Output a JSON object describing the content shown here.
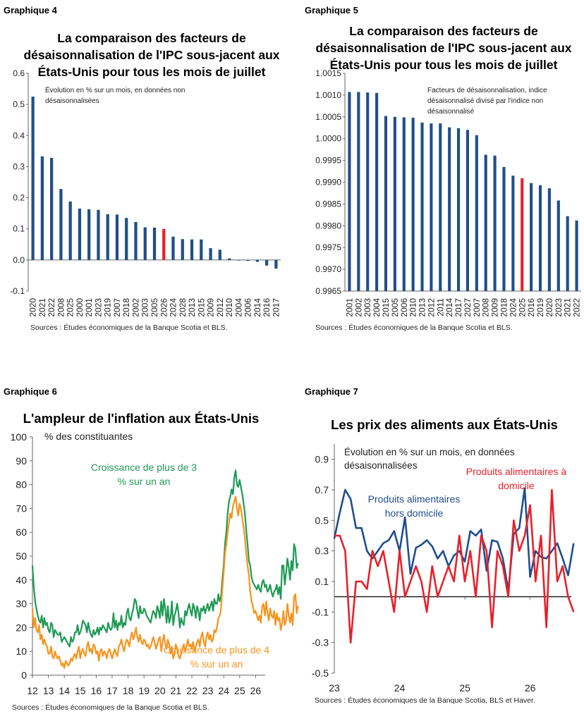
{
  "panels": {
    "g4": {
      "label": "Graphique 4",
      "title": "La comparaison des facteurs de désaisonnalisation de l'IPC sous-jacent aux États-Unis pour tous les mois de juillet",
      "note": "Évolution en % sur un mois, en données non désaisonnalisées",
      "source": "Sources : Études économiques de la Banque Scotia et BLS."
    },
    "g5": {
      "label": "Graphique 5",
      "title": "La comparaison des facteurs de désaisonnalisation de l'IPC sous-jacent aux États-Unis pour tous les mois de juillet",
      "note": "Facteurs de désaisonnalisation, indice désaisonnalisé divisé par l'indice non désaisonnalisé",
      "source": "Sources : Études économiques de la Banque Scotia et BLS."
    },
    "g6": {
      "label": "Graphique 6",
      "title": "L'ampleur de l'inflation aux États-Unis",
      "note": "% des constituantes",
      "source": "Sources : Études économiques de la Banque Scotia et BLS."
    },
    "g7": {
      "label": "Graphique 7",
      "title": "Les prix des aliments aux États-Unis",
      "note": "Évolution en % sur un mois, en données désaisonnalisées",
      "source": "Sources : Études économiques de la Banque Scotia, BLS et Haver."
    }
  },
  "colors": {
    "navy": "#1f4e8c",
    "red": "#e8202a",
    "green": "#1f9a55",
    "orange": "#f7941d",
    "axis": "#666666"
  },
  "chart_data": [
    {
      "type": "bar",
      "categories": [
        "2020",
        "2021",
        "2022",
        "2008",
        "2025",
        "2000",
        "2001",
        "2023",
        "2019",
        "2007",
        "2018",
        "2002",
        "2003",
        "2005",
        "2026",
        "2024",
        "2028",
        "2013",
        "2015",
        "2009",
        "2012",
        "2010",
        "2004",
        "2006",
        "2014",
        "2016",
        "2017"
      ],
      "values": [
        0.525,
        0.333,
        0.328,
        0.228,
        0.188,
        0.165,
        0.163,
        0.161,
        0.147,
        0.146,
        0.135,
        0.122,
        0.105,
        0.104,
        0.1,
        0.075,
        0.067,
        0.066,
        0.066,
        0.038,
        0.033,
        0.005,
        0.0,
        -0.003,
        -0.006,
        -0.018,
        -0.028
      ],
      "highlight": "2026",
      "ylim": [
        -0.1,
        0.6
      ],
      "yticks": [
        "0.6",
        "0.5",
        "0.4",
        "0.3",
        "0.2",
        "0.1",
        "0.0",
        "-0.1"
      ],
      "ytick_values": [
        0.6,
        0.5,
        0.4,
        0.3,
        0.2,
        0.1,
        0.0,
        -0.1
      ]
    },
    {
      "type": "bar",
      "categories": [
        "2001",
        "2002",
        "2003",
        "2004",
        "2015",
        "2005",
        "2006",
        "2010",
        "2013",
        "2012",
        "2011",
        "2014",
        "2017",
        "2027",
        "2007",
        "2008",
        "2009",
        "2018",
        "2024",
        "2025",
        "2016",
        "2019",
        "2020",
        "2023",
        "2021",
        "2022"
      ],
      "values": [
        1.00107,
        1.00107,
        1.00106,
        1.00105,
        1.00052,
        1.0005,
        1.00049,
        1.00048,
        1.00037,
        1.00035,
        1.00035,
        1.00026,
        1.00024,
        1.0002,
        1.00008,
        0.99963,
        0.99961,
        0.99935,
        0.99915,
        0.99909,
        0.99898,
        0.99893,
        0.99886,
        0.99858,
        0.99822,
        0.99812
      ],
      "highlight": "2025",
      "ylim": [
        0.9965,
        1.0015
      ],
      "yticks": [
        "1.0015",
        "1.0010",
        "1.0005",
        "1.0000",
        "0.9995",
        "0.9990",
        "0.9985",
        "0.9980",
        "0.9975",
        "0.9970",
        "0.9965"
      ],
      "ytick_values": [
        1.0015,
        1.001,
        1.0005,
        1.0,
        0.9995,
        0.999,
        0.9985,
        0.998,
        0.9975,
        0.997,
        0.9965
      ]
    },
    {
      "type": "line",
      "x_start": 2012.0,
      "x_step": 0.0833,
      "xlim": [
        2012.0,
        2026.6
      ],
      "ylim": [
        0,
        100
      ],
      "xticks": [
        "12",
        "13",
        "14",
        "15",
        "16",
        "17",
        "18",
        "19",
        "20",
        "21",
        "22",
        "23",
        "24",
        "25",
        "26"
      ],
      "xtick_values": [
        2012,
        2013,
        2014,
        2015,
        2016,
        2017,
        2018,
        2019,
        2020,
        2021,
        2022,
        2023,
        2024,
        2025,
        2026
      ],
      "yticks": [
        "100",
        "90",
        "80",
        "70",
        "60",
        "50",
        "40",
        "30",
        "20",
        "10",
        "0"
      ],
      "ytick_values": [
        100,
        90,
        80,
        70,
        60,
        50,
        40,
        30,
        20,
        10,
        0
      ],
      "series": [
        {
          "name": "Croissance de plus de 3 % sur un an",
          "color_key": "green",
          "values": [
            46,
            37,
            31,
            28,
            25,
            23,
            22,
            25,
            20,
            24,
            21,
            22,
            19,
            18,
            22,
            21,
            16,
            19,
            18,
            17,
            17,
            18,
            14,
            15,
            16,
            15,
            14,
            13,
            12,
            16,
            14,
            15,
            18,
            18,
            21,
            17,
            18,
            20,
            23,
            22,
            21,
            18,
            22,
            19,
            17,
            16,
            19,
            17,
            18,
            20,
            17,
            20,
            19,
            21,
            20,
            19,
            18,
            22,
            20,
            19,
            20,
            26,
            20,
            23,
            19,
            22,
            21,
            25,
            20,
            22,
            21,
            26,
            28,
            24,
            23,
            26,
            28,
            32,
            31,
            27,
            24,
            29,
            26,
            26,
            28,
            27,
            25,
            24,
            23,
            22,
            25,
            27,
            26,
            24,
            29,
            27,
            24,
            31,
            25,
            32,
            28,
            22,
            29,
            22,
            24,
            31,
            21,
            25,
            27,
            30,
            26,
            20,
            24,
            22,
            21,
            27,
            25,
            28,
            30,
            27,
            25,
            30,
            28,
            24,
            29,
            27,
            23,
            28,
            27,
            29,
            26,
            28,
            30,
            27,
            29,
            31,
            27,
            32,
            30,
            30,
            34,
            31,
            33,
            40,
            46,
            55,
            60,
            68,
            73,
            75,
            78,
            76,
            83,
            86,
            80,
            79,
            82,
            79,
            76,
            72,
            68,
            61,
            55,
            48,
            46,
            41,
            39,
            38,
            37,
            36,
            38,
            36,
            35,
            39,
            40,
            37,
            38,
            35,
            36,
            38,
            35,
            33,
            35,
            36,
            38,
            34,
            37,
            32,
            46,
            46,
            38,
            43,
            49,
            45,
            40,
            48,
            44,
            55,
            53,
            45,
            47
          ]
        },
        {
          "name": "Croissance de plus de 4 % sur un an",
          "color_key": "orange",
          "values": [
            28,
            20,
            24,
            19,
            18,
            21,
            15,
            17,
            13,
            15,
            13,
            12,
            9,
            9,
            12,
            8,
            7,
            10,
            8,
            7,
            8,
            6,
            4,
            5,
            3,
            6,
            5,
            4,
            5,
            7,
            6,
            8,
            9,
            7,
            10,
            12,
            7,
            10,
            11,
            9,
            8,
            12,
            14,
            10,
            11,
            9,
            13,
            12,
            9,
            10,
            6,
            10,
            11,
            8,
            10,
            9,
            7,
            10,
            11,
            9,
            7,
            9,
            11,
            9,
            8,
            12,
            13,
            15,
            12,
            10,
            13,
            15,
            14,
            12,
            16,
            18,
            15,
            17,
            20,
            16,
            14,
            17,
            14,
            13,
            15,
            14,
            12,
            13,
            11,
            12,
            14,
            16,
            14,
            11,
            13,
            15,
            16,
            10,
            14,
            17,
            13,
            11,
            15,
            13,
            9,
            12,
            7,
            9,
            13,
            11,
            8,
            7,
            9,
            11,
            13,
            10,
            12,
            15,
            12,
            13,
            11,
            14,
            10,
            12,
            14,
            15,
            12,
            16,
            18,
            14,
            12,
            16,
            18,
            15,
            17,
            14,
            15,
            19,
            18,
            20,
            24,
            25,
            28,
            36,
            43,
            51,
            55,
            60,
            64,
            68,
            66,
            71,
            73,
            75,
            70,
            67,
            72,
            70,
            66,
            62,
            58,
            51,
            46,
            42,
            35,
            31,
            29,
            26,
            27,
            25,
            23,
            25,
            22,
            29,
            30,
            25,
            31,
            26,
            23,
            28,
            25,
            24,
            27,
            21,
            26,
            23,
            24,
            19,
            22,
            27,
            21,
            23,
            30,
            25,
            22,
            26,
            21,
            33,
            34,
            26,
            29
          ]
        }
      ]
    },
    {
      "type": "line",
      "x_start": 2023.0,
      "x_step": 0.0833,
      "xlim": [
        2023.0,
        2026.63
      ],
      "ylim": [
        -0.5,
        1.0
      ],
      "xticks": [
        "23",
        "24",
        "25",
        "26"
      ],
      "xtick_values": [
        2023,
        2024,
        2025,
        2026
      ],
      "yticks": [
        "0.9",
        "0.7",
        "0.5",
        "0.3",
        "0.1",
        "-0.1",
        "-0.3",
        "-0.5"
      ],
      "ytick_values": [
        0.9,
        0.7,
        0.5,
        0.3,
        0.1,
        -0.1,
        -0.3,
        -0.5
      ],
      "series": [
        {
          "name": "Produits alimentaires hors domicile",
          "color_key": "navy",
          "values": [
            0.38,
            0.55,
            0.7,
            0.64,
            0.45,
            0.45,
            0.3,
            0.25,
            0.3,
            0.35,
            0.37,
            0.43,
            0.3,
            0.52,
            0.15,
            0.32,
            0.34,
            0.37,
            0.33,
            0.25,
            0.3,
            0.2,
            0.27,
            0.3,
            0.23,
            0.43,
            0.4,
            0.44,
            0.17,
            0.37,
            0.36,
            0.25,
            0.04,
            0.41,
            0.45,
            0.71,
            0.13,
            0.3,
            0.26,
            0.25,
            0.3,
            0.35,
            0.25,
            0.14,
            0.35
          ]
        },
        {
          "name": "Produits alimentaires à domicile",
          "color_key": "red",
          "values": [
            0.4,
            0.4,
            0.3,
            -0.3,
            0.1,
            0.1,
            0.05,
            0.3,
            0.2,
            0.3,
            0.1,
            -0.1,
            0.3,
            0.0,
            0.1,
            0.2,
            0.1,
            -0.1,
            0.2,
            0.0,
            0.1,
            0.2,
            0.1,
            0.4,
            0.1,
            0.3,
            0.0,
            0.4,
            0.3,
            -0.2,
            0.3,
            0.2,
            0.0,
            0.5,
            0.3,
            0.4,
            0.6,
            0.1,
            0.4,
            -0.2,
            0.7,
            0.1,
            0.2,
            0.0,
            -0.1
          ]
        }
      ]
    }
  ]
}
